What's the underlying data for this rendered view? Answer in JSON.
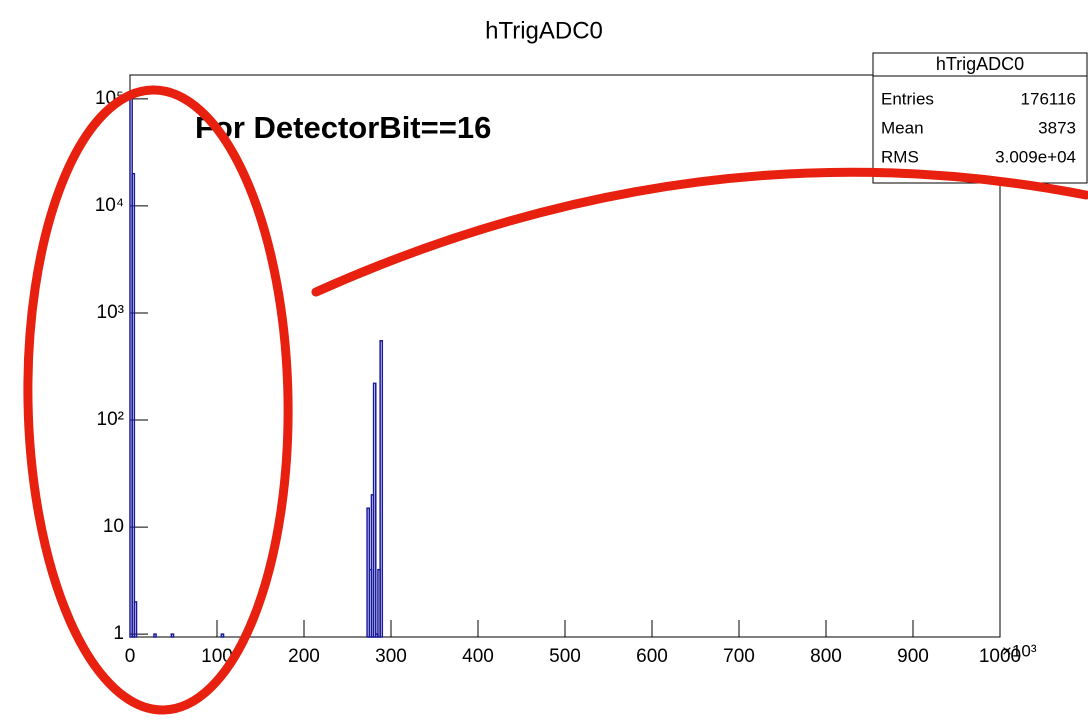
{
  "chart_data": {
    "type": "histogram",
    "title": "hTrigADC0",
    "annotation": "For DetectorBit==16",
    "x_multiplier": "×10³",
    "bins": [
      0,
      2.5,
      5,
      7.5,
      27.5,
      30,
      47.5,
      50,
      105,
      107.5,
      272.5,
      275,
      277.5,
      280,
      282.5,
      285,
      287.5,
      290,
      1000
    ],
    "values": [
      100000,
      20000,
      2,
      0,
      1,
      0,
      1,
      0,
      1,
      0,
      15,
      4,
      20,
      220,
      1,
      4,
      550,
      0
    ],
    "color": "#1a1a9c",
    "xlim": [
      0,
      1000
    ],
    "xticks": [
      0,
      100,
      200,
      300,
      400,
      500,
      600,
      700,
      800,
      900,
      1000
    ],
    "ylim": [
      0.94,
      167000
    ],
    "ylog": true,
    "yticks": [
      1,
      10,
      {
        "value": 100,
        "label": "10²"
      },
      {
        "value": 1000,
        "label": "10³"
      },
      {
        "value": 10000,
        "label": "10⁴"
      },
      {
        "value": 100000,
        "label": "10⁵"
      }
    ],
    "stats": {
      "title": "hTrigADC0",
      "rows": [
        [
          "Entries",
          176116
        ],
        [
          "Mean",
          3873
        ],
        [
          "RMS",
          "3.009e+04"
        ]
      ]
    }
  }
}
